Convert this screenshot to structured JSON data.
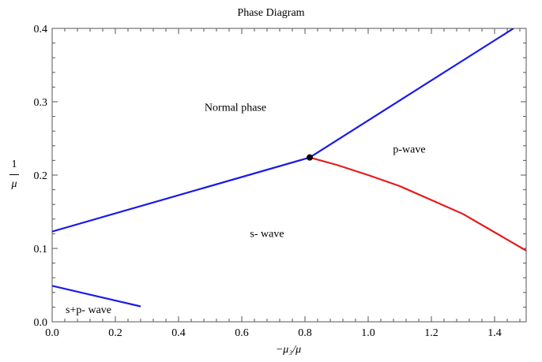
{
  "chart_data": {
    "type": "line",
    "title": "Phase Diagram",
    "xlabel": "−μ₃/μ",
    "ylabel": {
      "numerator": "1",
      "denominator": "μ"
    },
    "xlim": [
      0,
      1.5
    ],
    "ylim": [
      0,
      0.4
    ],
    "xticks": [
      "0.0",
      "0.2",
      "0.4",
      "0.6",
      "0.8",
      "1.0",
      "1.2",
      "1.4"
    ],
    "yticks": [
      "0.0",
      "0.1",
      "0.2",
      "0.3",
      "0.4"
    ],
    "grid": false,
    "colors": {
      "blue": "#1a1ae6",
      "red": "#e61a1a",
      "point": "#000000"
    },
    "series": [
      {
        "color": "#1a1ae6",
        "points": [
          [
            0,
            0.123
          ],
          [
            0.815,
            0.224
          ]
        ]
      },
      {
        "color": "#1a1ae6",
        "points": [
          [
            0.815,
            0.224
          ],
          [
            1.46,
            0.4
          ]
        ]
      },
      {
        "color": "#e61a1a",
        "points": [
          [
            0.815,
            0.224
          ],
          [
            0.9,
            0.214
          ],
          [
            1.0,
            0.2
          ],
          [
            1.1,
            0.185
          ],
          [
            1.2,
            0.166
          ],
          [
            1.3,
            0.147
          ],
          [
            1.4,
            0.122
          ],
          [
            1.5,
            0.097
          ]
        ]
      },
      {
        "color": "#1a1ae6",
        "points": [
          [
            0,
            0.049
          ],
          [
            0.28,
            0.021
          ]
        ]
      }
    ],
    "markers": [
      {
        "x": 0.815,
        "y": 0.224
      }
    ],
    "annotations": [
      {
        "text": "Normal phase",
        "x": 0.58,
        "y": 0.293
      },
      {
        "text": "p-wave",
        "x": 1.13,
        "y": 0.236
      },
      {
        "text": "s- wave",
        "x": 0.68,
        "y": 0.121
      },
      {
        "text": "s+p- wave",
        "x": 0.115,
        "y": 0.017
      }
    ]
  }
}
